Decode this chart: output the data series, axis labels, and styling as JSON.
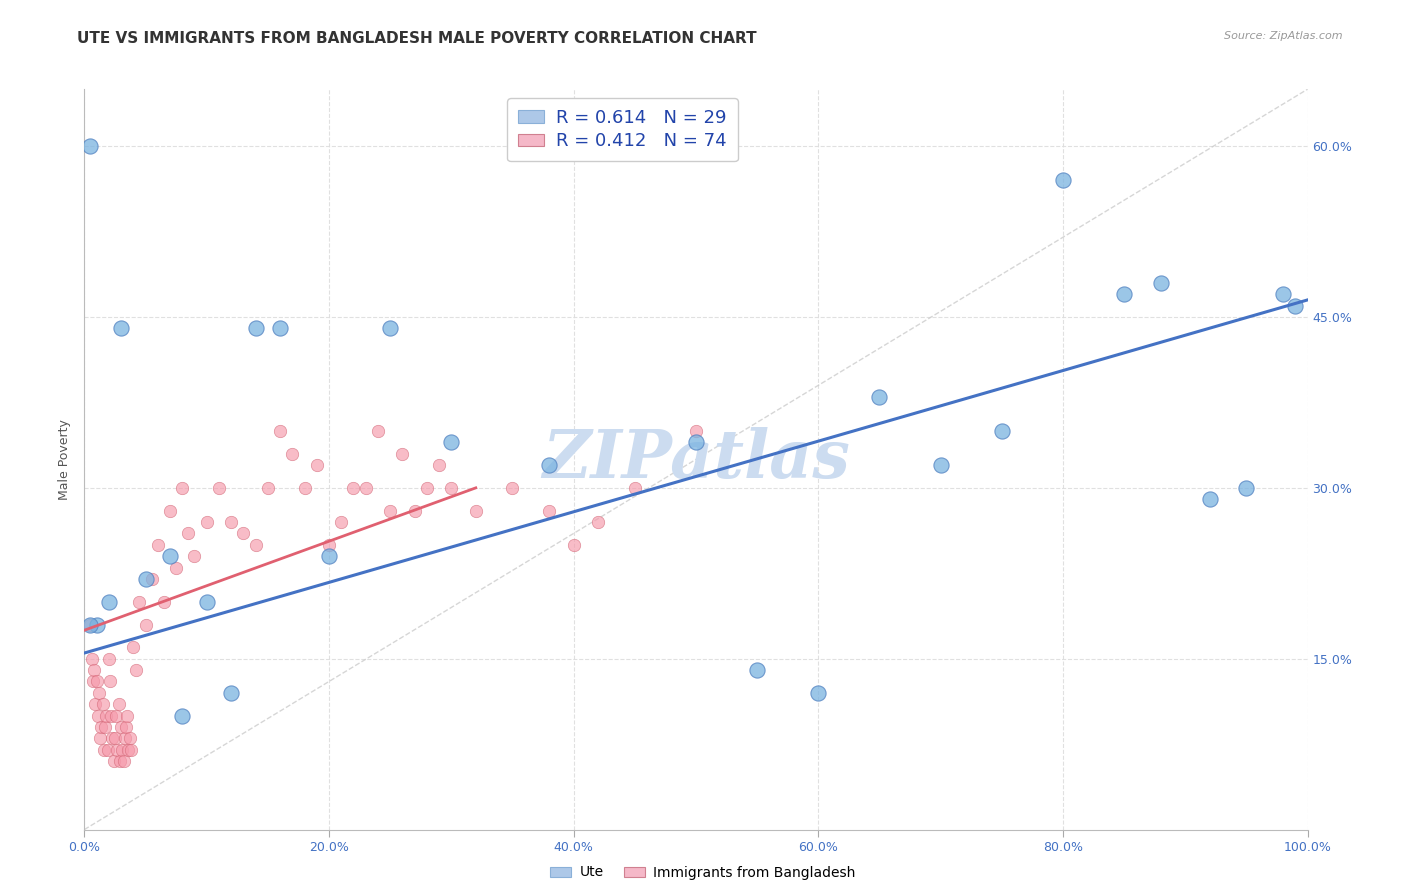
{
  "title": "UTE VS IMMIGRANTS FROM BANGLADESH MALE POVERTY CORRELATION CHART",
  "source": "Source: ZipAtlas.com",
  "ylabel_label": "Male Poverty",
  "watermark": "ZIPatlas",
  "legend_ute_r": "0.614",
  "legend_ute_n": "29",
  "legend_bd_r": "0.412",
  "legend_bd_n": "74",
  "legend_ute_patch_color": "#adc8e8",
  "legend_bd_patch_color": "#f5b8c8",
  "ute_scatter_x": [
    0.005,
    0.01,
    0.02,
    0.03,
    0.05,
    0.07,
    0.08,
    0.1,
    0.12,
    0.14,
    0.16,
    0.2,
    0.25,
    0.3,
    0.38,
    0.5,
    0.55,
    0.6,
    0.65,
    0.7,
    0.75,
    0.8,
    0.85,
    0.88,
    0.92,
    0.95,
    0.98,
    0.99,
    0.005
  ],
  "ute_scatter_y": [
    0.6,
    0.18,
    0.2,
    0.44,
    0.22,
    0.24,
    0.1,
    0.2,
    0.12,
    0.44,
    0.44,
    0.24,
    0.44,
    0.34,
    0.32,
    0.34,
    0.14,
    0.12,
    0.38,
    0.32,
    0.35,
    0.57,
    0.47,
    0.48,
    0.29,
    0.3,
    0.47,
    0.46,
    0.18
  ],
  "bd_scatter_x": [
    0.005,
    0.006,
    0.007,
    0.008,
    0.009,
    0.01,
    0.011,
    0.012,
    0.013,
    0.014,
    0.015,
    0.016,
    0.017,
    0.018,
    0.019,
    0.02,
    0.021,
    0.022,
    0.023,
    0.024,
    0.025,
    0.026,
    0.027,
    0.028,
    0.029,
    0.03,
    0.031,
    0.032,
    0.033,
    0.034,
    0.035,
    0.036,
    0.037,
    0.038,
    0.04,
    0.042,
    0.045,
    0.05,
    0.055,
    0.06,
    0.065,
    0.07,
    0.075,
    0.08,
    0.085,
    0.09,
    0.1,
    0.11,
    0.12,
    0.13,
    0.14,
    0.15,
    0.16,
    0.17,
    0.18,
    0.19,
    0.2,
    0.21,
    0.22,
    0.23,
    0.24,
    0.25,
    0.26,
    0.27,
    0.28,
    0.29,
    0.3,
    0.32,
    0.35,
    0.38,
    0.4,
    0.42,
    0.45,
    0.5
  ],
  "bd_scatter_y": [
    0.18,
    0.15,
    0.13,
    0.14,
    0.11,
    0.13,
    0.1,
    0.12,
    0.08,
    0.09,
    0.11,
    0.07,
    0.09,
    0.1,
    0.07,
    0.15,
    0.13,
    0.1,
    0.08,
    0.06,
    0.08,
    0.1,
    0.07,
    0.11,
    0.06,
    0.09,
    0.07,
    0.06,
    0.08,
    0.09,
    0.1,
    0.07,
    0.08,
    0.07,
    0.16,
    0.14,
    0.2,
    0.18,
    0.22,
    0.25,
    0.2,
    0.28,
    0.23,
    0.3,
    0.26,
    0.24,
    0.27,
    0.3,
    0.27,
    0.26,
    0.25,
    0.3,
    0.35,
    0.33,
    0.3,
    0.32,
    0.25,
    0.27,
    0.3,
    0.3,
    0.35,
    0.28,
    0.33,
    0.28,
    0.3,
    0.32,
    0.3,
    0.28,
    0.3,
    0.28,
    0.25,
    0.27,
    0.3,
    0.35
  ],
  "ute_line_x": [
    0.0,
    1.0
  ],
  "ute_line_y": [
    0.155,
    0.465
  ],
  "bd_line_x": [
    0.0,
    0.32
  ],
  "bd_line_y": [
    0.175,
    0.3
  ],
  "ute_scatter_color": "#7ab3e0",
  "ute_scatter_edge": "#5080c0",
  "bd_scatter_color": "#f599aa",
  "bd_scatter_edge": "#d06070",
  "ute_line_color": "#4472c4",
  "bd_line_color": "#e06070",
  "diag_color": "#cccccc",
  "grid_color": "#dddddd",
  "bg_color": "#ffffff",
  "title_color": "#333333",
  "source_color": "#999999",
  "tick_color": "#4472c4",
  "ylabel_color": "#555555",
  "watermark_color": "#ccdcf0",
  "xlim": [
    0.0,
    1.0
  ],
  "ylim": [
    0.0,
    0.65
  ],
  "xticks": [
    0.0,
    0.2,
    0.4,
    0.6,
    0.8,
    1.0
  ],
  "xticklabels": [
    "0.0%",
    "20.0%",
    "40.0%",
    "60.0%",
    "80.0%",
    "100.0%"
  ],
  "yticks": [
    0.15,
    0.3,
    0.45,
    0.6
  ],
  "yticklabels": [
    "15.0%",
    "30.0%",
    "45.0%",
    "60.0%"
  ],
  "bottom_legend_ute": "Ute",
  "bottom_legend_bd": "Immigrants from Bangladesh"
}
